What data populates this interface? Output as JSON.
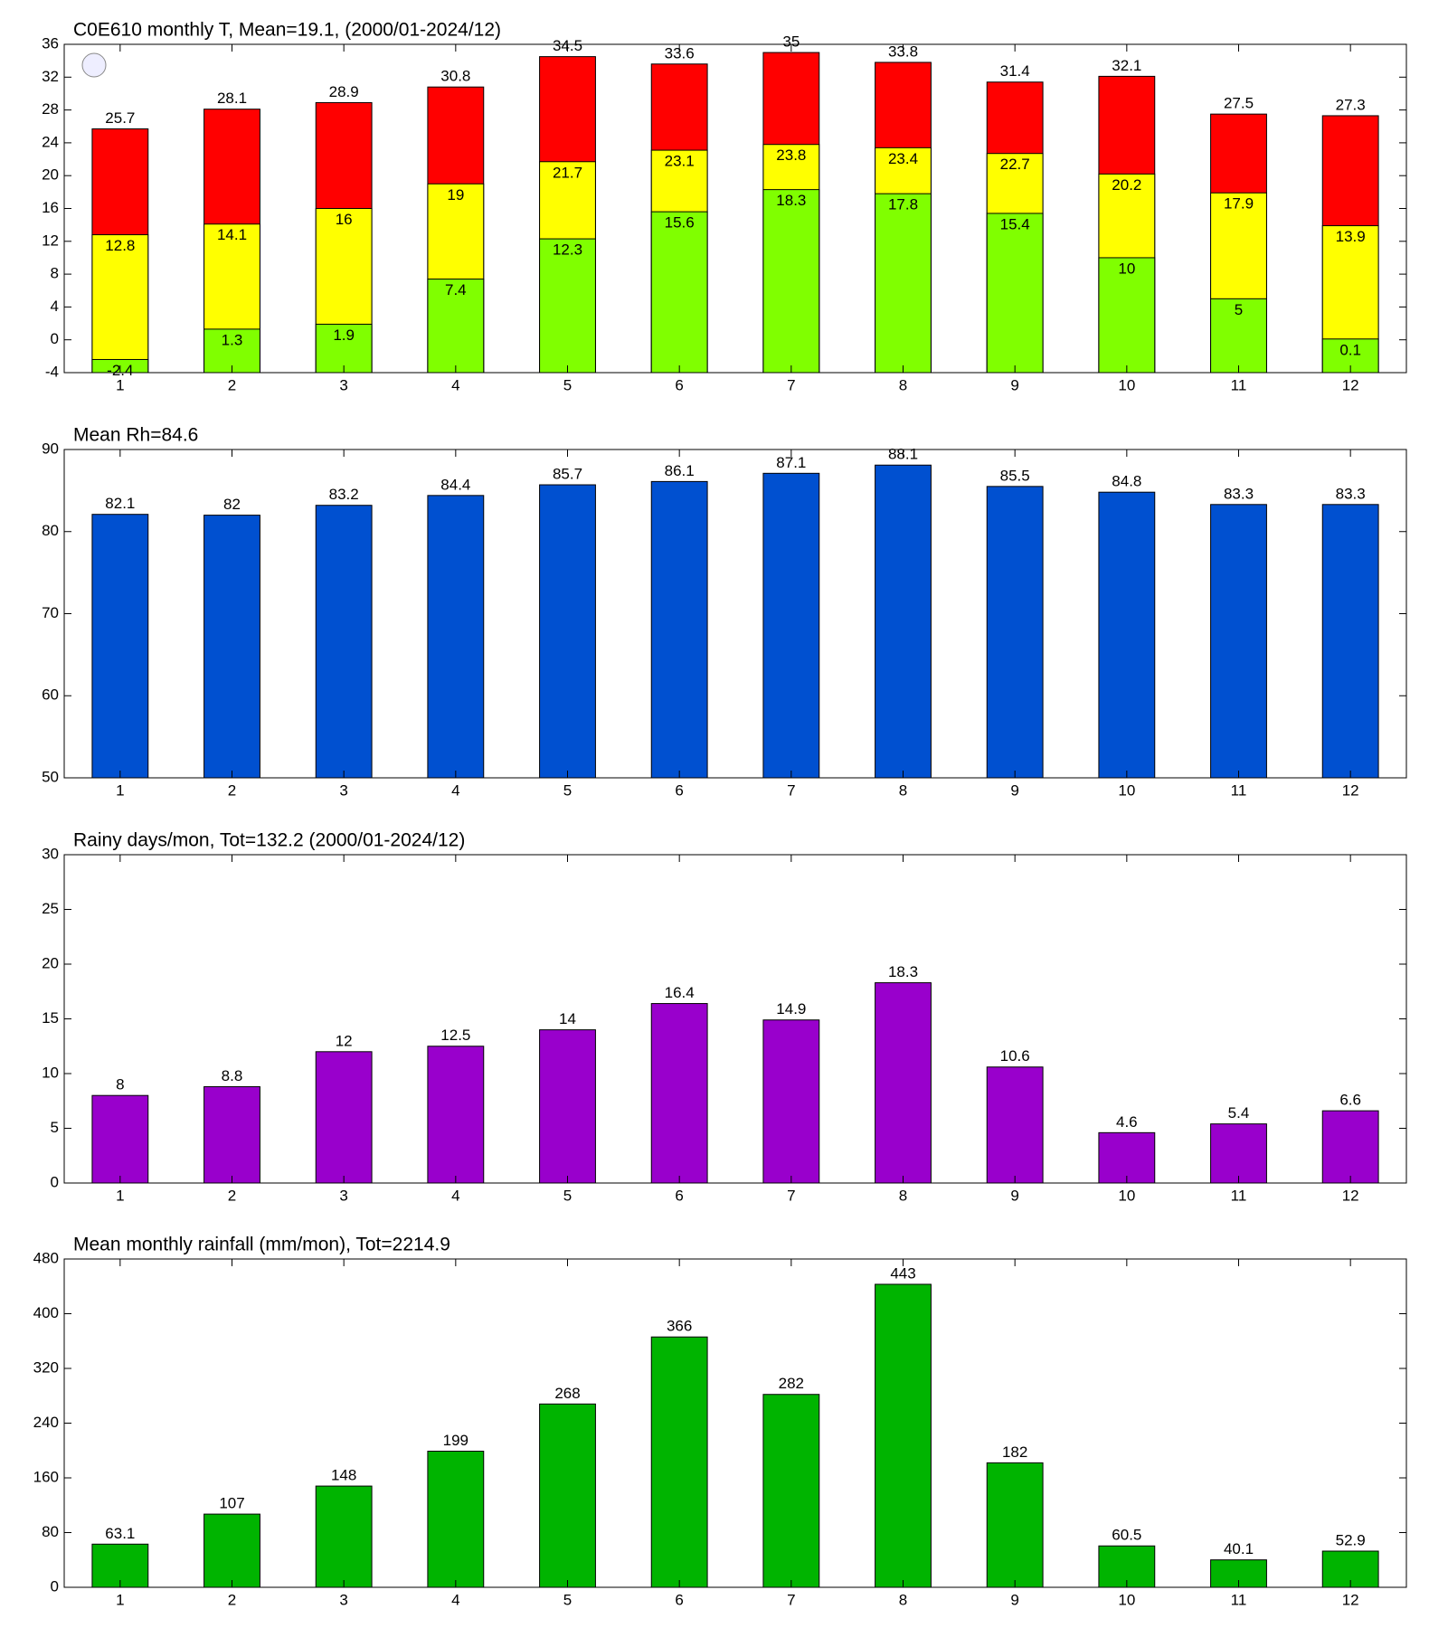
{
  "chart_data": [
    {
      "type": "bar",
      "title": "C0E610 monthly T, Mean=19.1, (2000/01-2024/12)",
      "categories": [
        "1",
        "2",
        "3",
        "4",
        "5",
        "6",
        "7",
        "8",
        "9",
        "10",
        "11",
        "12"
      ],
      "series": [
        {
          "color": "#ff0000",
          "values": [
            25.7,
            28.1,
            28.9,
            30.8,
            34.5,
            33.6,
            35,
            33.8,
            31.4,
            32.1,
            27.5,
            27.3
          ]
        },
        {
          "color": "#ffff00",
          "values": [
            12.8,
            14.1,
            16,
            19,
            21.7,
            23.1,
            23.8,
            23.4,
            22.7,
            20.2,
            17.9,
            13.9
          ]
        },
        {
          "color": "#80ff00",
          "values": [
            -2.4,
            1.3,
            1.9,
            7.4,
            12.3,
            15.6,
            18.3,
            17.8,
            15.4,
            10,
            5,
            0.1
          ]
        }
      ],
      "ylim": [
        -4,
        36
      ],
      "yticks": [
        -4,
        0,
        4,
        8,
        12,
        16,
        20,
        24,
        28,
        32,
        36
      ]
    },
    {
      "type": "bar",
      "title": "Mean Rh=84.6",
      "categories": [
        "1",
        "2",
        "3",
        "4",
        "5",
        "6",
        "7",
        "8",
        "9",
        "10",
        "11",
        "12"
      ],
      "series": [
        {
          "color": "#0050d0",
          "values": [
            82.1,
            82,
            83.2,
            84.4,
            85.7,
            86.1,
            87.1,
            88.1,
            85.5,
            84.8,
            83.3,
            83.3
          ]
        }
      ],
      "ylim": [
        50,
        90
      ],
      "yticks": [
        50,
        60,
        70,
        80,
        90
      ]
    },
    {
      "type": "bar",
      "title": "Rainy days/mon, Tot=132.2 (2000/01-2024/12)",
      "categories": [
        "1",
        "2",
        "3",
        "4",
        "5",
        "6",
        "7",
        "8",
        "9",
        "10",
        "11",
        "12"
      ],
      "series": [
        {
          "color": "#9900cc",
          "values": [
            8,
            8.8,
            12,
            12.5,
            14,
            16.4,
            14.9,
            18.3,
            10.6,
            4.6,
            5.4,
            6.6
          ]
        }
      ],
      "ylim": [
        0,
        30
      ],
      "yticks": [
        0,
        5,
        10,
        15,
        20,
        25,
        30
      ]
    },
    {
      "type": "bar",
      "title": "Mean monthly rainfall (mm/mon), Tot=2214.9",
      "categories": [
        "1",
        "2",
        "3",
        "4",
        "5",
        "6",
        "7",
        "8",
        "9",
        "10",
        "11",
        "12"
      ],
      "series": [
        {
          "color": "#00b400",
          "values": [
            63.1,
            107,
            148,
            199,
            268,
            366,
            282,
            443,
            182,
            60.5,
            40.1,
            52.9
          ]
        }
      ],
      "ylim": [
        0,
        480
      ],
      "yticks": [
        0,
        80,
        160,
        240,
        320,
        400,
        480
      ]
    }
  ]
}
